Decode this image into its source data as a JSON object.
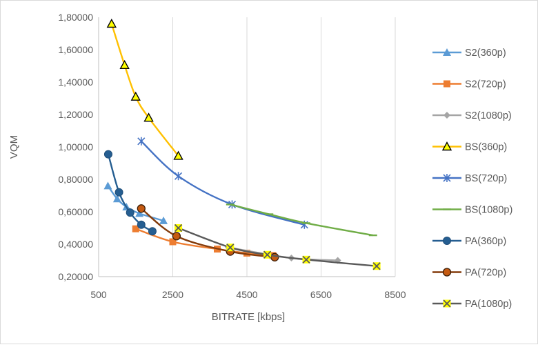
{
  "chart_data": {
    "type": "line",
    "title": "",
    "xlabel": "BITRATE [kbps]",
    "ylabel": "VQM",
    "xlim": [
      500,
      8500
    ],
    "ylim": [
      0.2,
      1.8
    ],
    "x_ticks": [
      "500",
      "2500",
      "4500",
      "6500",
      "8500"
    ],
    "y_ticks": [
      "0,20000",
      "0,40000",
      "0,60000",
      "0,80000",
      "1,00000",
      "1,20000",
      "1,40000",
      "1,60000",
      "1,80000"
    ],
    "grid": "vertical",
    "legend": "right",
    "series": [
      {
        "name": "S2(360p)",
        "color": "#5b9bd5",
        "marker": "triangle",
        "x": [
          750,
          1000,
          1250,
          1600,
          2250
        ],
        "y": [
          0.76,
          0.68,
          0.63,
          0.59,
          0.545
        ]
      },
      {
        "name": "S2(720p)",
        "color": "#ed7d31",
        "marker": "square",
        "x": [
          1500,
          2500,
          3700,
          4500,
          5200
        ],
        "y": [
          0.495,
          0.415,
          0.37,
          0.345,
          0.33
        ]
      },
      {
        "name": "S2(1080p)",
        "color": "#a5a5a5",
        "marker": "diamond",
        "x": [
          4000,
          5700,
          6950
        ],
        "y": [
          0.38,
          0.315,
          0.3
        ]
      },
      {
        "name": "BS(360p)",
        "color": "#ffc000",
        "marker": "open-triangle",
        "x": [
          850,
          1200,
          1500,
          1850,
          2650
        ],
        "y": [
          1.76,
          1.505,
          1.31,
          1.18,
          0.945
        ]
      },
      {
        "name": "BS(720p)",
        "color": "#4472c4",
        "marker": "star",
        "x": [
          1650,
          2650,
          4100,
          6050
        ],
        "y": [
          1.035,
          0.82,
          0.645,
          0.52
        ]
      },
      {
        "name": "BS(1080p)",
        "color": "#70ad47",
        "marker": "dash",
        "x": [
          4050,
          5100,
          6100,
          7900
        ],
        "y": [
          0.645,
          0.585,
          0.53,
          0.455
        ]
      },
      {
        "name": "PA(360p)",
        "color": "#255e91",
        "marker": "circle",
        "x": [
          760,
          1050,
          1350,
          1650,
          1950
        ],
        "y": [
          0.955,
          0.72,
          0.595,
          0.52,
          0.48
        ]
      },
      {
        "name": "PA(720p)",
        "color": "#843c0c",
        "marker": "circle-filled-orange",
        "x": [
          1650,
          2600,
          4050,
          5250
        ],
        "y": [
          0.62,
          0.45,
          0.355,
          0.32
        ]
      },
      {
        "name": "PA(1080p)",
        "color": "#595959",
        "marker": "x-yellow",
        "x": [
          2650,
          4050,
          5050,
          6100,
          8000
        ],
        "y": [
          0.5,
          0.38,
          0.335,
          0.305,
          0.265
        ]
      }
    ]
  }
}
